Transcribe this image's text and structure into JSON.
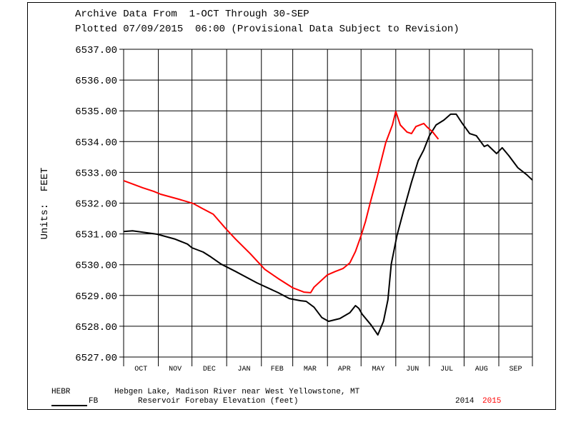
{
  "header": {
    "line1": "Archive Data From  1-OCT Through 30-SEP",
    "line2": "Plotted 07/09/2015  06:00 (Provisional Data Subject to Revision)"
  },
  "chart_data": {
    "type": "line",
    "ylabel": "Units:  FEET",
    "ylim": [
      6527,
      6537
    ],
    "yticks": [
      "6537.00",
      "6536.00",
      "6535.00",
      "6534.00",
      "6533.00",
      "6532.00",
      "6531.00",
      "6530.00",
      "6529.00",
      "6528.00",
      "6527.00"
    ],
    "x_unit": "day of water year (from 1-OCT)",
    "xlim": [
      0,
      365
    ],
    "months": [
      {
        "label": "OCT",
        "days": 31
      },
      {
        "label": "NOV",
        "days": 30
      },
      {
        "label": "DEC",
        "days": 31
      },
      {
        "label": "JAN",
        "days": 31
      },
      {
        "label": "FEB",
        "days": 28
      },
      {
        "label": "MAR",
        "days": 31
      },
      {
        "label": "APR",
        "days": 30
      },
      {
        "label": "MAY",
        "days": 31
      },
      {
        "label": "JUN",
        "days": 30
      },
      {
        "label": "JUL",
        "days": 31
      },
      {
        "label": "AUG",
        "days": 31
      },
      {
        "label": "SEP",
        "days": 30
      }
    ],
    "grid": true,
    "series": [
      {
        "name": "2014",
        "color": "#000000",
        "x": [
          0,
          8,
          30,
          46,
          57,
          61,
          71,
          78,
          87,
          100,
          119,
          138,
          148,
          158,
          163,
          170,
          177,
          183,
          193,
          202,
          207,
          210,
          213,
          221,
          227,
          232,
          236,
          239,
          244,
          250,
          257,
          263,
          268,
          273,
          279,
          286,
          292,
          297,
          302,
          309,
          315,
          322,
          325,
          333,
          338,
          344,
          352,
          360,
          365
        ],
        "y": [
          6531.08,
          6531.1,
          6530.99,
          6530.83,
          6530.67,
          6530.55,
          6530.41,
          6530.25,
          6530.02,
          6529.78,
          6529.41,
          6529.09,
          6528.9,
          6528.83,
          6528.81,
          6528.62,
          6528.28,
          6528.16,
          6528.25,
          6528.44,
          6528.67,
          6528.58,
          6528.39,
          6528.04,
          6527.72,
          6528.16,
          6528.86,
          6530.02,
          6530.94,
          6531.76,
          6532.68,
          6533.38,
          6533.73,
          6534.19,
          6534.54,
          6534.7,
          6534.89,
          6534.89,
          6534.61,
          6534.26,
          6534.19,
          6533.84,
          6533.89,
          6533.61,
          6533.8,
          6533.54,
          6533.15,
          6532.92,
          6532.75
        ]
      },
      {
        "name": "2015",
        "color": "#ff0000",
        "x": [
          0,
          17,
          27,
          33,
          49,
          62,
          70,
          80,
          91,
          100,
          113,
          126,
          138,
          151,
          161,
          167,
          170,
          182,
          189,
          196,
          202,
          207,
          212,
          216,
          220,
          226,
          234,
          240,
          243,
          247,
          253,
          257,
          261,
          268,
          271,
          276,
          281
        ],
        "y": [
          6532.73,
          6532.5,
          6532.38,
          6532.29,
          6532.13,
          6531.99,
          6531.83,
          6531.64,
          6531.18,
          6530.83,
          6530.36,
          6529.85,
          6529.55,
          6529.25,
          6529.11,
          6529.09,
          6529.27,
          6529.67,
          6529.78,
          6529.88,
          6530.06,
          6530.43,
          6530.94,
          6531.41,
          6531.99,
          6532.8,
          6533.96,
          6534.54,
          6534.98,
          6534.54,
          6534.31,
          6534.26,
          6534.49,
          6534.59,
          6534.47,
          6534.31,
          6534.08
        ]
      }
    ]
  },
  "footer": {
    "station": "HEBR",
    "description": "Hebgen Lake, Madison River near West Yellowstone, MT",
    "param_code": "FB",
    "param_desc": "Reservoir Forebay Elevation (feet)",
    "legend_2014": "2014",
    "legend_2015": "2015"
  }
}
